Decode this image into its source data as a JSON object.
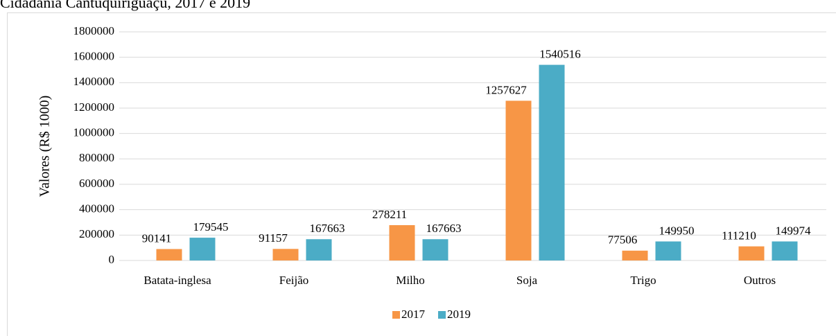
{
  "chart_data": {
    "type": "bar",
    "title": "Cidadania Cantuquiriguaçu, 2017 e 2019",
    "y_label": "Valores (R$ 1000)",
    "categories": [
      "Batata-inglesa",
      "Feijão",
      "Milho",
      "Soja",
      "Trigo",
      "Outros"
    ],
    "series": [
      {
        "name": "2017",
        "color": "#f79646",
        "values": [
          90141,
          91157,
          278211,
          1257627,
          77506,
          111210
        ]
      },
      {
        "name": "2019",
        "color": "#4bacc6",
        "values": [
          179545,
          167663,
          167663,
          1540516,
          149950,
          149974
        ]
      }
    ],
    "ylim": [
      0,
      1800000
    ],
    "yticks": [
      0,
      200000,
      400000,
      600000,
      800000,
      1000000,
      1200000,
      1400000,
      1600000,
      1800000
    ],
    "grid": true,
    "legend": "bottom"
  }
}
